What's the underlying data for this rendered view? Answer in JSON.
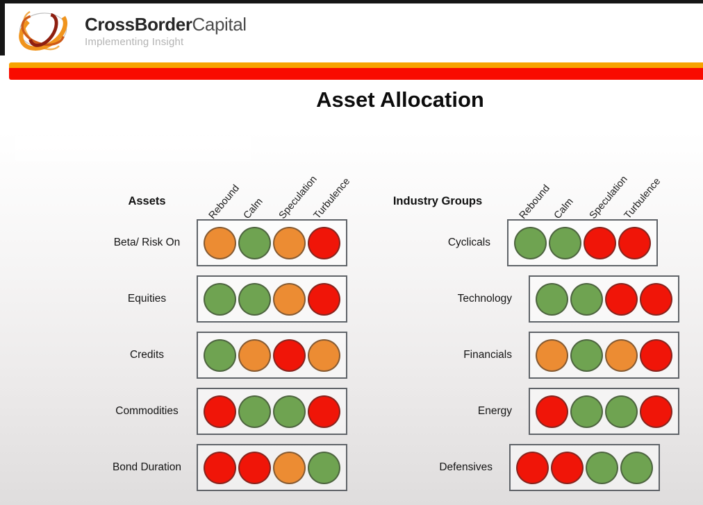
{
  "header": {
    "brand_bold": "CrossBorder",
    "brand_light": "Capital",
    "tagline": "Implementing Insight"
  },
  "title": "Asset Allocation",
  "columns": [
    "Rebound",
    "Calm",
    "Speculation",
    "Turbulence"
  ],
  "palette": {
    "green": "#6FA351",
    "orange": "#EC8C33",
    "red": "#F01508",
    "divider_orange": "#F7A300",
    "divider_red": "#F90B00"
  },
  "tables": [
    {
      "heading": "Assets",
      "rows": [
        {
          "label": "Beta/ Risk On",
          "dots": [
            "orange",
            "green",
            "orange",
            "red"
          ]
        },
        {
          "label": "Equities",
          "dots": [
            "green",
            "green",
            "orange",
            "red"
          ]
        },
        {
          "label": "Credits",
          "dots": [
            "green",
            "orange",
            "red",
            "orange"
          ]
        },
        {
          "label": "Commodities",
          "dots": [
            "red",
            "green",
            "green",
            "red"
          ]
        },
        {
          "label": "Bond Duration",
          "dots": [
            "red",
            "red",
            "orange",
            "green"
          ]
        }
      ]
    },
    {
      "heading": "Industry Groups",
      "rows": [
        {
          "label": "Cyclicals",
          "dots": [
            "green",
            "green",
            "red",
            "red"
          ]
        },
        {
          "label": "Technology",
          "dots": [
            "green",
            "green",
            "red",
            "red"
          ]
        },
        {
          "label": "Financials",
          "dots": [
            "orange",
            "green",
            "orange",
            "red"
          ]
        },
        {
          "label": "Energy",
          "dots": [
            "red",
            "green",
            "green",
            "red"
          ]
        },
        {
          "label": "Defensives",
          "dots": [
            "red",
            "red",
            "green",
            "green"
          ]
        }
      ]
    }
  ],
  "chart_data": [
    {
      "type": "heatmap",
      "title": "Assets",
      "x": [
        "Rebound",
        "Calm",
        "Speculation",
        "Turbulence"
      ],
      "y": [
        "Beta/ Risk On",
        "Equities",
        "Credits",
        "Commodities",
        "Bond Duration"
      ],
      "values": [
        [
          "orange",
          "green",
          "orange",
          "red"
        ],
        [
          "green",
          "green",
          "orange",
          "red"
        ],
        [
          "green",
          "orange",
          "red",
          "orange"
        ],
        [
          "red",
          "green",
          "green",
          "red"
        ],
        [
          "red",
          "red",
          "orange",
          "green"
        ]
      ],
      "value_colors": {
        "green": "#6FA351",
        "orange": "#EC8C33",
        "red": "#F01508"
      }
    },
    {
      "type": "heatmap",
      "title": "Industry Groups",
      "x": [
        "Rebound",
        "Calm",
        "Speculation",
        "Turbulence"
      ],
      "y": [
        "Cyclicals",
        "Technology",
        "Financials",
        "Energy",
        "Defensives"
      ],
      "values": [
        [
          "green",
          "green",
          "red",
          "red"
        ],
        [
          "green",
          "green",
          "red",
          "red"
        ],
        [
          "orange",
          "green",
          "orange",
          "red"
        ],
        [
          "red",
          "green",
          "green",
          "red"
        ],
        [
          "red",
          "red",
          "green",
          "green"
        ]
      ],
      "value_colors": {
        "green": "#6FA351",
        "orange": "#EC8C33",
        "red": "#F01508"
      }
    }
  ]
}
